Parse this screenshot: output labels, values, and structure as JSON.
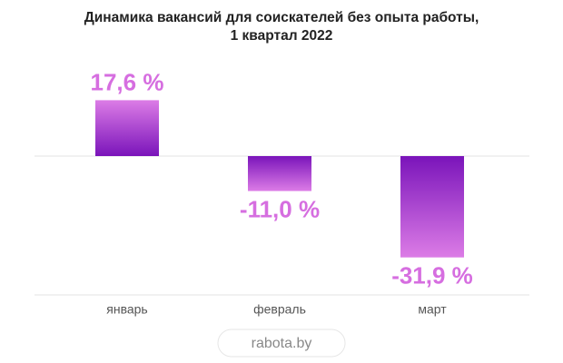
{
  "chart_data": {
    "type": "bar",
    "title": [
      "Динамика вакансий для соискателей без опыта работы,",
      "1 квартал 2022"
    ],
    "categories": [
      "январь",
      "февраль",
      "март"
    ],
    "values": [
      17.6,
      -11.0,
      -31.9
    ],
    "value_labels": [
      "17,6 %",
      "-11,0 %",
      "-31,9 %"
    ],
    "gradient": [
      "#dc7ce6",
      "#7a14ba"
    ],
    "label_color": "#d66ee0"
  },
  "footer": "rabota.by"
}
